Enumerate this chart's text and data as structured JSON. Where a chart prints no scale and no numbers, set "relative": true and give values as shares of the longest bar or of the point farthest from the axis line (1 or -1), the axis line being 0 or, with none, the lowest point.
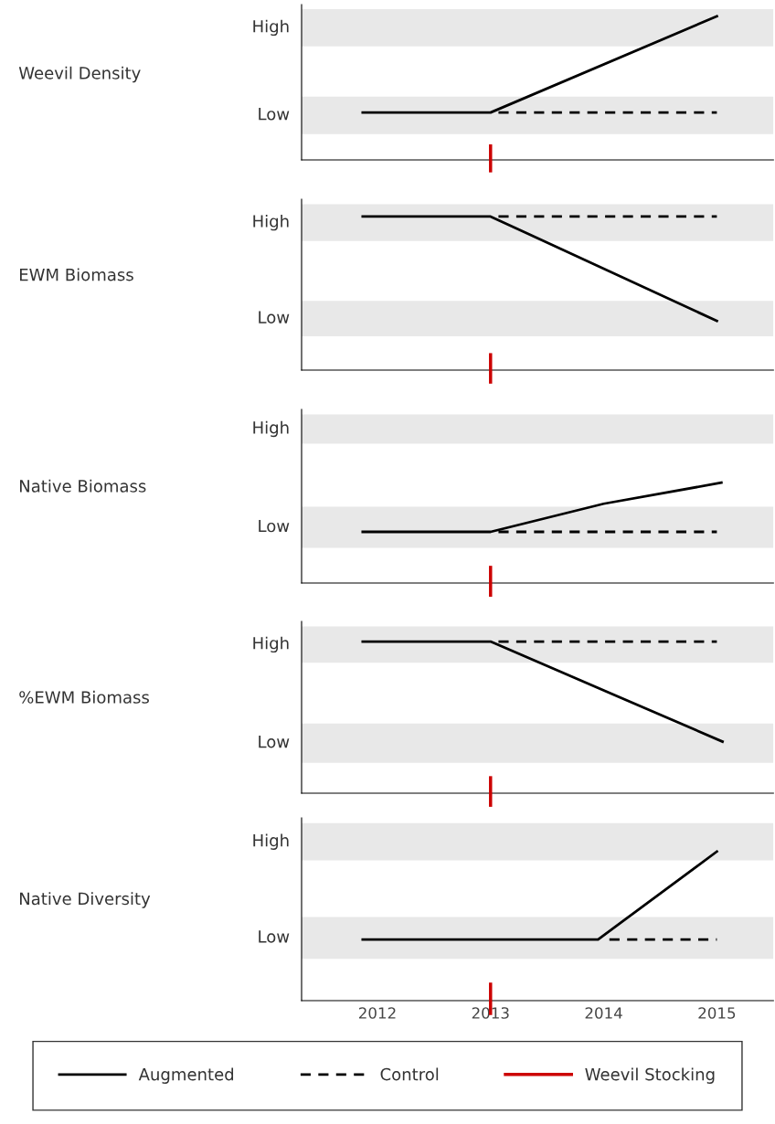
{
  "chart_data": [
    {
      "type": "line",
      "relative": true,
      "ylabel": "Weevil Density",
      "xlim": [
        2011.33,
        2015.5
      ],
      "xticks": [
        2012,
        2013,
        2014,
        2015
      ],
      "tick_labels": false,
      "line_style": "solid",
      "marker": "none",
      "series": [
        {
          "color": "#000000",
          "x": [
            2011.87,
            2013,
            2015
          ],
          "values": [
            0.33,
            0.33,
            1
          ]
        },
        {
          "color": "#000000",
          "line_style": "dashed",
          "x": [
            2013.07,
            2015
          ],
          "values": [
            0.33,
            0.33
          ]
        }
      ],
      "bands": [
        {
          "axis": "y",
          "from": 0.18,
          "to": 0.44,
          "label": "Low",
          "color": "#e8e8e8"
        },
        {
          "axis": "y",
          "from": 0.79,
          "to": 1.05,
          "label": "High",
          "color": "#e8e8e8"
        }
      ],
      "ref_lines": [
        {
          "axis": "x",
          "value": 2013,
          "color": "#cc0000"
        }
      ]
    },
    {
      "type": "line",
      "relative": true,
      "ylabel": "EWM Biomass",
      "xlim": [
        2011.33,
        2015.5
      ],
      "xticks": [
        2012,
        2013,
        2014,
        2015
      ],
      "tick_labels": false,
      "line_style": "solid",
      "marker": "none",
      "series": [
        {
          "color": "#000000",
          "x": [
            2011.87,
            2013,
            2015
          ],
          "values": [
            1,
            1,
            0.32
          ]
        },
        {
          "color": "#000000",
          "line_style": "dashed",
          "x": [
            2013.07,
            2015
          ],
          "values": [
            1,
            1
          ]
        }
      ],
      "bands": [
        {
          "axis": "y",
          "from": 0.22,
          "to": 0.45,
          "label": "Low",
          "color": "#e8e8e8"
        },
        {
          "axis": "y",
          "from": 0.84,
          "to": 1.08,
          "label": "High",
          "color": "#e8e8e8"
        }
      ],
      "ref_lines": [
        {
          "axis": "x",
          "value": 2013,
          "color": "#cc0000"
        }
      ]
    },
    {
      "type": "line",
      "relative": true,
      "ylabel": "Native Biomass",
      "xlim": [
        2011.33,
        2015.5
      ],
      "xticks": [
        2012,
        2013,
        2014,
        2015
      ],
      "tick_labels": false,
      "line_style": "solid",
      "marker": "none",
      "series": [
        {
          "color": "#000000",
          "x": [
            2011.87,
            2013,
            2014,
            2015.04
          ],
          "values": [
            0.51,
            0.51,
            0.79,
            1
          ]
        },
        {
          "color": "#000000",
          "line_style": "dashed",
          "x": [
            2013.07,
            2015
          ],
          "values": [
            0.51,
            0.51
          ]
        }
      ],
      "bands": [
        {
          "axis": "y",
          "from": 0.35,
          "to": 0.76,
          "label": "Low",
          "color": "#e8e8e8"
        },
        {
          "axis": "y",
          "from": 1.39,
          "to": 1.68,
          "label": "High",
          "color": "#e8e8e8"
        }
      ],
      "ref_lines": [
        {
          "axis": "x",
          "value": 2013,
          "color": "#cc0000"
        }
      ]
    },
    {
      "type": "line",
      "relative": true,
      "ylabel": "%EWM Biomass",
      "xlim": [
        2011.33,
        2015.5
      ],
      "xticks": [
        2012,
        2013,
        2014,
        2015
      ],
      "tick_labels": false,
      "line_style": "solid",
      "marker": "none",
      "series": [
        {
          "color": "#000000",
          "x": [
            2011.87,
            2013,
            2015.05
          ],
          "values": [
            1,
            1,
            0.34
          ]
        },
        {
          "color": "#000000",
          "line_style": "dashed",
          "x": [
            2013.07,
            2015
          ],
          "values": [
            1,
            1
          ]
        }
      ],
      "bands": [
        {
          "axis": "y",
          "from": 0.2,
          "to": 0.46,
          "label": "Low",
          "color": "#e8e8e8"
        },
        {
          "axis": "y",
          "from": 0.86,
          "to": 1.1,
          "label": "High",
          "color": "#e8e8e8"
        }
      ],
      "ref_lines": [
        {
          "axis": "x",
          "value": 2013,
          "color": "#cc0000"
        }
      ]
    },
    {
      "type": "line",
      "relative": true,
      "ylabel": "Native Diversity",
      "xlim": [
        2011.33,
        2015.5
      ],
      "xticks": [
        2012,
        2013,
        2014,
        2015
      ],
      "tick_labels": "x",
      "line_style": "solid",
      "marker": "none",
      "legend": "bottom",
      "series": [
        {
          "name": "Augmented",
          "color": "#000000",
          "x": [
            2011.87,
            2013.95,
            2015
          ],
          "values": [
            0.41,
            0.41,
            1
          ]
        },
        {
          "name": "Control",
          "color": "#000000",
          "line_style": "dashed",
          "x": [
            2014.05,
            2015
          ],
          "values": [
            0.41,
            0.41
          ]
        }
      ],
      "bands": [
        {
          "axis": "y",
          "from": 0.28,
          "to": 0.56,
          "label": "Low",
          "color": "#e8e8e8"
        },
        {
          "axis": "y",
          "from": 0.94,
          "to": 1.19,
          "label": "High",
          "color": "#e8e8e8"
        }
      ],
      "ref_lines": [
        {
          "axis": "x",
          "value": 2013,
          "label": "Weevil Stocking",
          "color": "#cc0000"
        }
      ]
    }
  ]
}
